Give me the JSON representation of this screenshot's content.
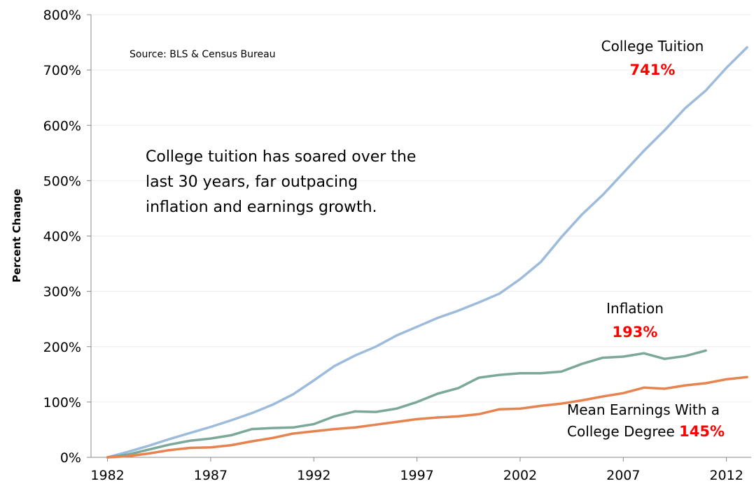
{
  "chart_data": {
    "type": "line",
    "ylabel": "Percent Change",
    "ylim": [
      0,
      800
    ],
    "yticks": [
      "0%",
      "100%",
      "200%",
      "300%",
      "400%",
      "500%",
      "600%",
      "700%",
      "800%"
    ],
    "xticks": [
      "1982",
      "1987",
      "1992",
      "1997",
      "2002",
      "2007",
      "2012"
    ],
    "xlim": [
      1982,
      2013
    ],
    "grid": true,
    "source": "Source: BLS & Census Bureau",
    "annotation_lines": [
      "College tuition has soared over the",
      "last 30 years, far outpacing",
      "inflation and earnings growth."
    ],
    "series": [
      {
        "name": "College Tuition",
        "end_label": "741%",
        "color": "#9DBBDB",
        "x": [
          1982,
          1983,
          1984,
          1985,
          1986,
          1987,
          1988,
          1989,
          1990,
          1991,
          1992,
          1993,
          1994,
          1995,
          1996,
          1997,
          1998,
          1999,
          2000,
          2001,
          2002,
          2003,
          2004,
          2005,
          2006,
          2007,
          2008,
          2009,
          2010,
          2011,
          2012,
          2013
        ],
        "y": [
          0,
          10,
          21,
          33,
          44,
          55,
          67,
          80,
          95,
          114,
          139,
          165,
          184,
          200,
          220,
          236,
          252,
          265,
          280,
          296,
          322,
          353,
          398,
          439,
          474,
          514,
          554,
          591,
          631,
          663,
          704,
          741
        ]
      },
      {
        "name": "Inflation",
        "end_label": "193%",
        "color": "#7BA899",
        "x": [
          1982,
          1983,
          1984,
          1985,
          1986,
          1987,
          1988,
          1989,
          1990,
          1991,
          1992,
          1993,
          1994,
          1995,
          1996,
          1997,
          1998,
          1999,
          2000,
          2001,
          2002,
          2003,
          2004,
          2005,
          2006,
          2007,
          2008,
          2009,
          2010,
          2011
        ],
        "y": [
          0,
          5,
          14,
          23,
          30,
          34,
          40,
          51,
          53,
          54,
          60,
          74,
          83,
          82,
          88,
          100,
          115,
          125,
          144,
          149,
          152,
          152,
          155,
          169,
          180,
          182,
          188,
          178,
          183,
          193
        ]
      },
      {
        "name": "Mean Earnings With a College Degree",
        "label_lines": [
          "Mean Earnings With a",
          "College Degree"
        ],
        "end_label": "145%",
        "color": "#E6834E",
        "x": [
          1982,
          1983,
          1984,
          1985,
          1986,
          1987,
          1988,
          1989,
          1990,
          1991,
          1992,
          1993,
          1994,
          1995,
          1996,
          1997,
          1998,
          1999,
          2000,
          2001,
          2002,
          2003,
          2004,
          2005,
          2006,
          2007,
          2008,
          2009,
          2010,
          2011,
          2012,
          2013
        ],
        "y": [
          0,
          2,
          7,
          13,
          17,
          18,
          22,
          29,
          35,
          43,
          47,
          51,
          54,
          59,
          64,
          69,
          72,
          74,
          78,
          87,
          88,
          93,
          97,
          103,
          110,
          116,
          126,
          124,
          130,
          134,
          141,
          145
        ]
      }
    ]
  }
}
